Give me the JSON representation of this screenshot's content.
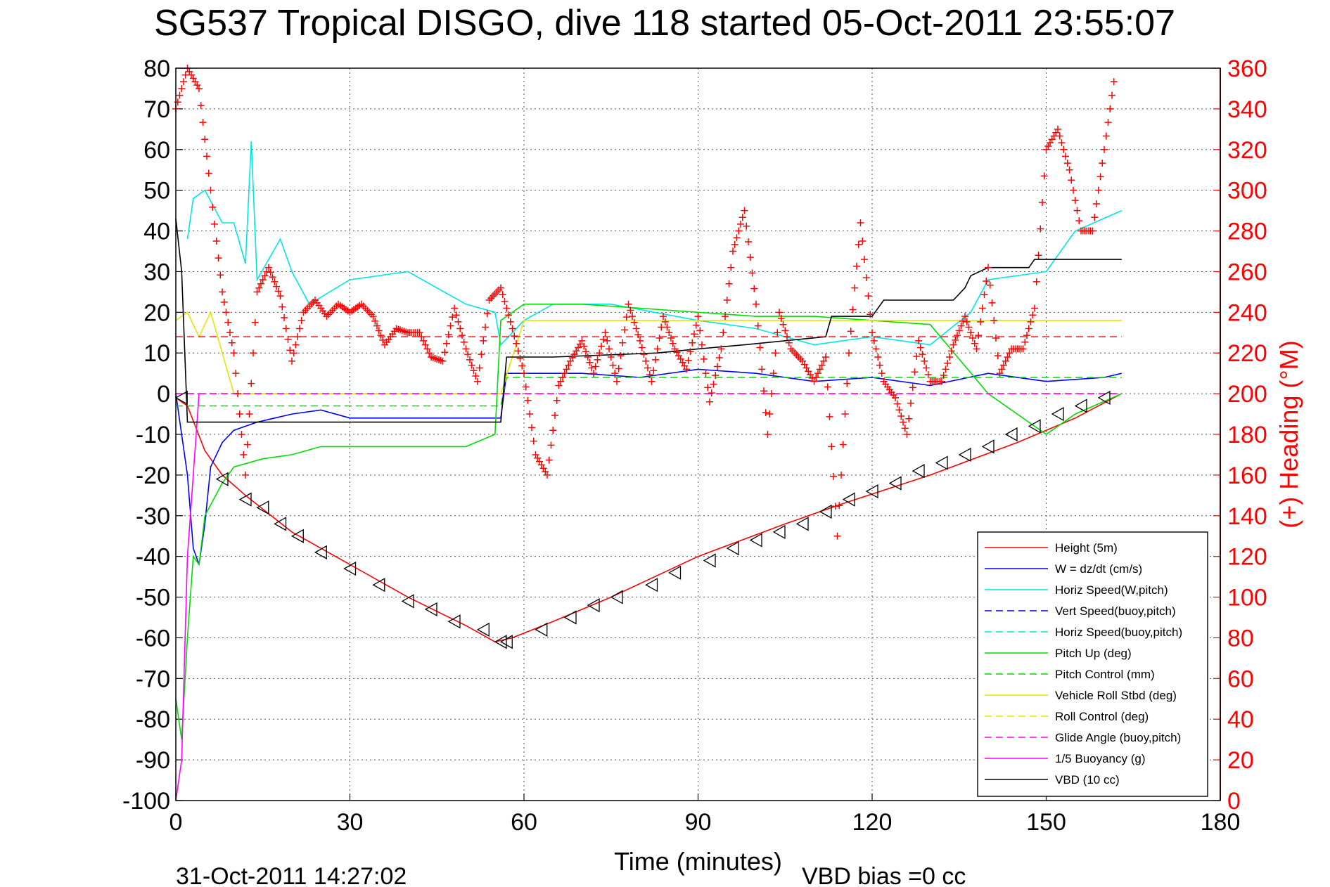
{
  "chart_data": {
    "type": "line",
    "title": "SG537 Tropical DISGO, dive 118 started 05-Oct-2011 23:55:07",
    "xlabel": "Time (minutes)",
    "ylabel": "",
    "y2label": "(+) Heading (°M)",
    "footer_left": "31-Oct-2011 14:27:02",
    "footer_right": "VBD bias =0 cc",
    "xlim": [
      0,
      180
    ],
    "ylim": [
      -100,
      80
    ],
    "y2lim": [
      0,
      360
    ],
    "xticks": [
      "0",
      "30",
      "60",
      "90",
      "120",
      "150",
      "180"
    ],
    "yticks": [
      "80",
      "70",
      "60",
      "50",
      "40",
      "30",
      "20",
      "10",
      "0",
      "-10",
      "-20",
      "-30",
      "-40",
      "-50",
      "-60",
      "-70",
      "-80",
      "-90",
      "-100"
    ],
    "y2ticks": [
      "360",
      "340",
      "320",
      "300",
      "280",
      "260",
      "240",
      "220",
      "200",
      "180",
      "160",
      "140",
      "120",
      "100",
      "80",
      "60",
      "40",
      "20",
      "0"
    ],
    "grid": true,
    "legend_position": "bottom-right",
    "colors": {
      "red": "#ff0000",
      "blue": "#0000ff",
      "cyan": "#00ffff",
      "green": "#00ff00",
      "yellow": "#ffff00",
      "magenta": "#ff00ff",
      "black": "#000000"
    },
    "legend": [
      {
        "label": "Height (5m)",
        "color": "#ff0000",
        "dash": false
      },
      {
        "label": "W = dz/dt (cm/s)",
        "color": "#0000ff",
        "dash": false
      },
      {
        "label": "Horiz Speed(W,pitch)",
        "color": "#00e5e5",
        "dash": false
      },
      {
        "label": "Vert Speed(buoy,pitch)",
        "color": "#0000ff",
        "dash": true
      },
      {
        "label": "Horiz Speed(buoy,pitch)",
        "color": "#00e5e5",
        "dash": true
      },
      {
        "label": "Pitch Up (deg)",
        "color": "#00dd00",
        "dash": false
      },
      {
        "label": "Pitch Control (mm)",
        "color": "#00dd00",
        "dash": true
      },
      {
        "label": "Vehicle Roll Stbd (deg)",
        "color": "#e5e500",
        "dash": false
      },
      {
        "label": "Roll Control (deg)",
        "color": "#e5e500",
        "dash": true
      },
      {
        "label": "Glide Angle (buoy,pitch)",
        "color": "#ff00ff",
        "dash": true
      },
      {
        "label": "1/5 Buoyancy (g)",
        "color": "#ff00ff",
        "dash": false
      },
      {
        "label": "VBD (10 cc)",
        "color": "#000000",
        "dash": false
      }
    ],
    "series": [
      {
        "name": "Height (5m)",
        "x": [
          0,
          2,
          5,
          8,
          12,
          20,
          30,
          40,
          50,
          55,
          58,
          65,
          75,
          90,
          105,
          115,
          130,
          145,
          155,
          163
        ],
        "y": [
          -1,
          -3,
          -14,
          -20,
          -25,
          -34,
          -42,
          -50,
          -57,
          -61,
          -60,
          -56,
          -50,
          -40,
          -32,
          -27,
          -20,
          -12,
          -6,
          0
        ]
      },
      {
        "name": "W = dz/dt (cm/s)",
        "x": [
          0,
          2,
          3,
          4,
          5,
          6,
          8,
          10,
          14,
          20,
          25,
          30,
          40,
          50,
          56,
          57,
          60,
          70,
          80,
          90,
          100,
          110,
          120,
          130,
          140,
          150,
          160,
          163
        ],
        "y": [
          0,
          -20,
          -38,
          -42,
          -32,
          -18,
          -12,
          -9,
          -7,
          -5,
          -4,
          -6,
          -6,
          -6,
          -6,
          5,
          5,
          5,
          4,
          6,
          5,
          3,
          4,
          2,
          5,
          3,
          4,
          5
        ]
      },
      {
        "name": "Horiz Speed(W,pitch)",
        "x": [
          2,
          3,
          5,
          8,
          10,
          12,
          13,
          14,
          18,
          20,
          23,
          30,
          40,
          50,
          55,
          56,
          60,
          65,
          75,
          90,
          100,
          110,
          120,
          130,
          137,
          140,
          150,
          155,
          163
        ],
        "y": [
          38,
          48,
          50,
          42,
          42,
          32,
          62,
          28,
          38,
          30,
          22,
          28,
          30,
          22,
          20,
          12,
          18,
          22,
          22,
          18,
          16,
          12,
          14,
          12,
          20,
          28,
          30,
          40,
          45
        ]
      },
      {
        "name": "Pitch Up (deg)",
        "x": [
          0,
          1,
          2,
          3,
          4,
          5,
          8,
          10,
          15,
          20,
          25,
          30,
          40,
          50,
          55,
          56,
          58,
          60,
          70,
          80,
          90,
          100,
          110,
          120,
          130,
          140,
          145,
          150,
          155,
          163
        ],
        "y": [
          -75,
          -85,
          -60,
          -40,
          -42,
          -30,
          -22,
          -18,
          -16,
          -15,
          -13,
          -13,
          -13,
          -13,
          -10,
          18,
          20,
          22,
          22,
          21,
          20,
          19,
          19,
          18,
          17,
          0,
          -5,
          -10,
          -5,
          0
        ]
      },
      {
        "name": "Pitch Control (mm)",
        "x": [
          0,
          56,
          57,
          163
        ],
        "y": [
          -3,
          -3,
          4,
          4
        ]
      },
      {
        "name": "Vehicle Roll Stbd (deg)",
        "x": [
          0,
          2,
          4,
          6,
          10,
          20,
          30,
          40,
          50,
          56,
          60,
          70,
          80,
          90,
          100,
          110,
          120,
          130,
          140,
          150,
          155,
          160,
          163
        ],
        "y": [
          18,
          20,
          14,
          20,
          0,
          0,
          0,
          0,
          0,
          0,
          18,
          18,
          18,
          18,
          18,
          18,
          18,
          18,
          18,
          18,
          18,
          18,
          18
        ]
      },
      {
        "name": "Roll Control (deg)",
        "x": [
          0,
          163
        ],
        "y": [
          0,
          0
        ]
      },
      {
        "name": "Glide Angle (buoy,pitch)",
        "x": [
          0,
          163
        ],
        "y": [
          0,
          0
        ]
      },
      {
        "name": "1/5 Buoyancy (g)",
        "x": [
          0,
          1,
          2,
          3,
          4
        ],
        "y": [
          -100,
          -90,
          -40,
          -20,
          0
        ]
      },
      {
        "name": "VBD (10 cc)",
        "x": [
          0,
          1,
          2,
          56,
          57,
          65,
          83,
          90,
          98,
          112,
          113,
          120,
          122,
          130,
          134,
          136,
          137,
          140,
          147,
          148,
          163
        ],
        "y": [
          43,
          30,
          -7,
          -7,
          9,
          9,
          10,
          11,
          12,
          14,
          19,
          19,
          23,
          23,
          23,
          26,
          29,
          31,
          31,
          33,
          33
        ]
      },
      {
        "name": "(+) Heading (°M)",
        "axis": "y2",
        "x": [
          0,
          2,
          4,
          6,
          8,
          10,
          12,
          14,
          16,
          18,
          20,
          22,
          24,
          26,
          28,
          30,
          32,
          34,
          36,
          38,
          40,
          42,
          44,
          46,
          48,
          50,
          52,
          54,
          56,
          58,
          60,
          62,
          64,
          66,
          68,
          70,
          72,
          74,
          76,
          78,
          80,
          82,
          84,
          86,
          88,
          90,
          92,
          94,
          96,
          98,
          100,
          102,
          104,
          106,
          108,
          110,
          112,
          114,
          116,
          118,
          120,
          122,
          124,
          126,
          128,
          130,
          132,
          134,
          136,
          138,
          140,
          142,
          144,
          146,
          148,
          150,
          152,
          154,
          156,
          158,
          160,
          162
        ],
        "y": [
          340,
          360,
          350,
          300,
          250,
          220,
          160,
          250,
          262,
          248,
          216,
          240,
          246,
          238,
          244,
          240,
          244,
          238,
          224,
          232,
          230,
          230,
          218,
          216,
          242,
          222,
          206,
          246,
          252,
          232,
          210,
          170,
          160,
          204,
          216,
          226,
          210,
          230,
          206,
          244,
          226,
          206,
          238,
          222,
          212,
          238,
          196,
          222,
          270,
          290,
          244,
          180,
          240,
          222,
          216,
          206,
          218,
          130,
          220,
          284,
          230,
          206,
          198,
          180,
          226,
          206,
          206,
          224,
          238,
          222,
          262,
          210,
          222,
          222,
          242,
          320,
          330,
          310,
          280,
          280,
          320,
          360
        ]
      }
    ],
    "markers": {
      "name": "dive-markers",
      "x": [
        1,
        8,
        12,
        15,
        18,
        21,
        25,
        30,
        35,
        40,
        44,
        48,
        53,
        56,
        57,
        63,
        68,
        72,
        76,
        82,
        86,
        92,
        96,
        100,
        104,
        108,
        112,
        116,
        120,
        124,
        128,
        132,
        136,
        140,
        144,
        148,
        152,
        156,
        160
      ],
      "y": [
        -1,
        -21,
        -26,
        -28,
        -32,
        -35,
        -39,
        -43,
        -47,
        -51,
        -53,
        -56,
        -58,
        -61,
        -61,
        -58,
        -55,
        -52,
        -50,
        -47,
        -44,
        -41,
        -38,
        -36,
        -34,
        -32,
        -29,
        -26,
        -24,
        -22,
        -19,
        -17,
        -15,
        -13,
        -10,
        -8,
        -5,
        -3,
        -1
      ]
    },
    "reference_lines": [
      {
        "name": "heading-reference",
        "axis": "y2",
        "value": 228,
        "color": "#ff0000"
      }
    ]
  }
}
